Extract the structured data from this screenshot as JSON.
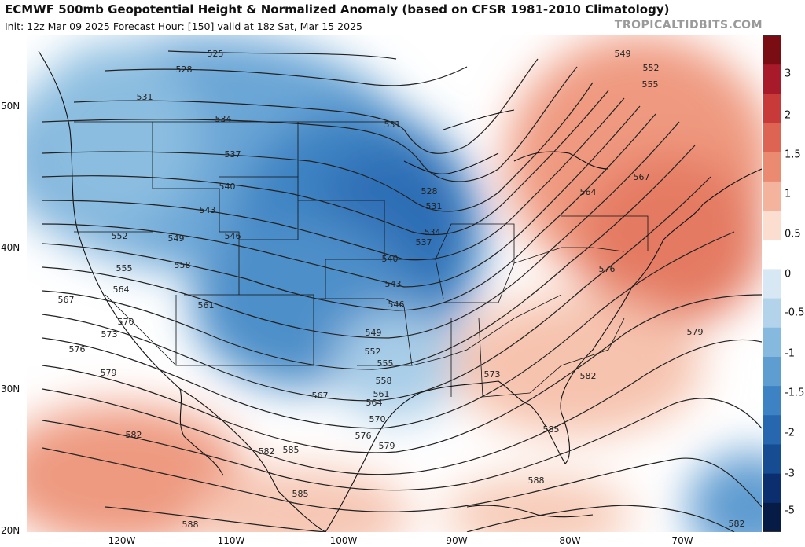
{
  "header": {
    "title": "ECMWF 500mb Geopotential Height & Normalized Anomaly (based on CFSR 1981-2010 Climatology)",
    "subtitle": "Init: 12z Mar 09 2025   Forecast Hour: [150]   valid at 18z Sat, Mar 15 2025",
    "credit": "TROPICALTIDBITS.COM"
  },
  "axes": {
    "lat_labels": [
      "50N",
      "40N",
      "30N",
      "20N"
    ],
    "lon_labels": [
      "120W",
      "110W",
      "100W",
      "90W",
      "80W",
      "70W"
    ]
  },
  "colorbar": {
    "labels": [
      "3",
      "2",
      "1.5",
      "1",
      "0.5",
      "0",
      "-0.5",
      "-1",
      "-1.5",
      "-2",
      "-3",
      "-5"
    ],
    "colors": [
      "#7a0c14",
      "#a8192a",
      "#c83a3a",
      "#dd6452",
      "#ea8a70",
      "#f4b39c",
      "#fbded0",
      "#ffffff",
      "#d7e8f4",
      "#b3d3ea",
      "#86b9de",
      "#5d9dd0",
      "#3d82c2",
      "#2667b0",
      "#154c92",
      "#0b2f6e",
      "#071b47"
    ]
  },
  "contour_labels": [
    {
      "text": "525"
    },
    {
      "text": "528"
    },
    {
      "text": "531"
    },
    {
      "text": "534"
    },
    {
      "text": "537"
    },
    {
      "text": "540"
    },
    {
      "text": "543"
    },
    {
      "text": "546"
    },
    {
      "text": "549"
    },
    {
      "text": "552"
    },
    {
      "text": "555"
    },
    {
      "text": "558"
    },
    {
      "text": "561"
    },
    {
      "text": "564"
    },
    {
      "text": "567"
    },
    {
      "text": "570"
    },
    {
      "text": "573"
    },
    {
      "text": "576"
    },
    {
      "text": "579"
    },
    {
      "text": "582"
    },
    {
      "text": "585"
    },
    {
      "text": "588"
    },
    {
      "text": "531"
    },
    {
      "text": "528"
    },
    {
      "text": "531"
    },
    {
      "text": "534"
    },
    {
      "text": "537"
    },
    {
      "text": "540"
    },
    {
      "text": "543"
    },
    {
      "text": "546"
    },
    {
      "text": "549"
    },
    {
      "text": "552"
    },
    {
      "text": "555"
    },
    {
      "text": "558"
    },
    {
      "text": "561"
    },
    {
      "text": "564"
    },
    {
      "text": "567"
    },
    {
      "text": "570"
    },
    {
      "text": "576"
    },
    {
      "text": "579"
    },
    {
      "text": "582"
    },
    {
      "text": "585"
    },
    {
      "text": "573"
    },
    {
      "text": "582"
    },
    {
      "text": "585"
    },
    {
      "text": "588"
    },
    {
      "text": "549"
    },
    {
      "text": "552"
    },
    {
      "text": "555"
    },
    {
      "text": "564"
    },
    {
      "text": "567"
    },
    {
      "text": "576"
    },
    {
      "text": "579"
    },
    {
      "text": "582"
    }
  ]
}
